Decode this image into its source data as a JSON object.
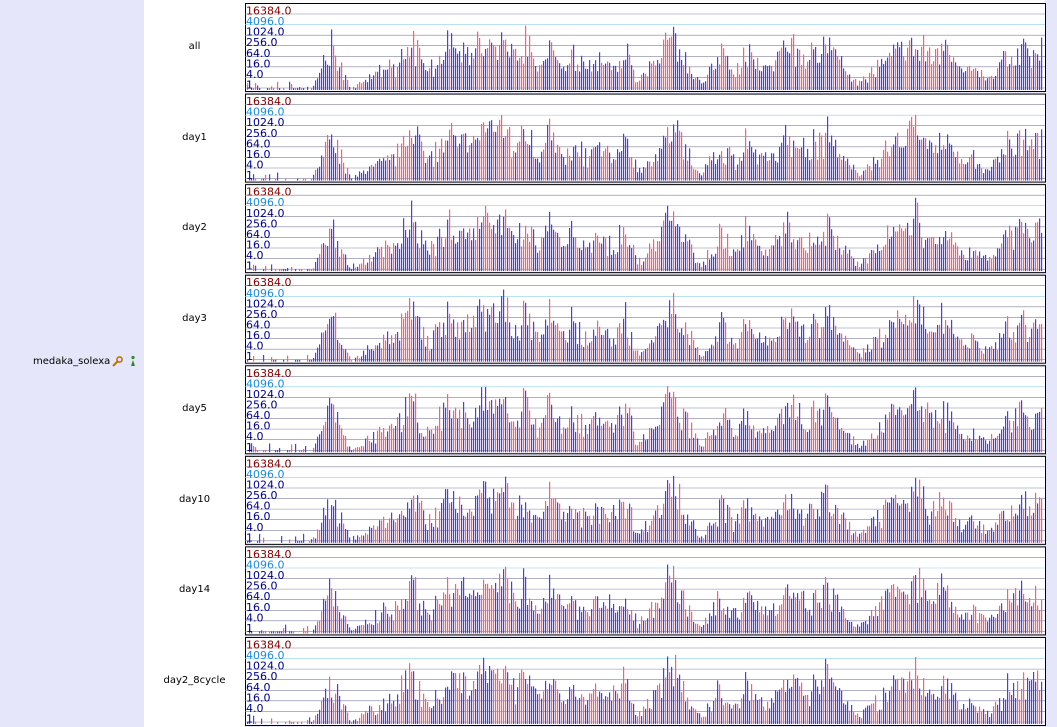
{
  "track": {
    "name": "medaka_solexa",
    "icons": [
      "wrench-icon",
      "info-icon"
    ]
  },
  "chart_data": {
    "type": "bar",
    "scale": "log",
    "ylim": [
      1,
      16384
    ],
    "y_tick_labels": [
      "16384.0",
      "4096.0",
      "1024.0",
      "256.0",
      "64.0",
      "16.0",
      "4.0",
      "1"
    ],
    "series_colors": {
      "forward": "#ff5c7a",
      "reverse": "#4b3cf0"
    },
    "tick_colors": {
      "16384.0": "#800000",
      "4096.0": "#1e8ad6",
      "default": "#000080"
    },
    "subtracks": [
      {
        "name": "all"
      },
      {
        "name": "day1"
      },
      {
        "name": "day2"
      },
      {
        "name": "day3"
      },
      {
        "name": "day5"
      },
      {
        "name": "day10"
      },
      {
        "name": "day14"
      },
      {
        "name": "day2_8cycle"
      }
    ]
  }
}
